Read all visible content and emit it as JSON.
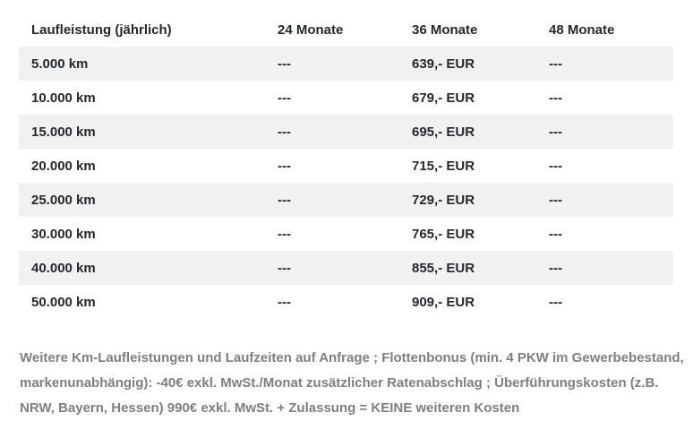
{
  "colors": {
    "stripe": "#f1f1f1",
    "table_text": "#24282c",
    "note_text": "#7f7f7f"
  },
  "table": {
    "columns": [
      "Laufleistung (jährlich)",
      "24 Monate",
      "36 Monate",
      "48 Monate"
    ],
    "rows": [
      [
        "5.000 km",
        "---",
        "639,- EUR",
        "---"
      ],
      [
        "10.000 km",
        "---",
        "679,- EUR",
        "---"
      ],
      [
        "15.000 km",
        "---",
        "695,- EUR",
        "---"
      ],
      [
        "20.000 km",
        "---",
        "715,- EUR",
        "---"
      ],
      [
        "25.000 km",
        "---",
        "729,- EUR",
        "---"
      ],
      [
        "30.000 km",
        "---",
        "765,- EUR",
        "---"
      ],
      [
        "40.000 km",
        "---",
        "855,- EUR",
        "---"
      ],
      [
        "50.000 km",
        "---",
        "909,- EUR",
        "---"
      ]
    ]
  },
  "note": {
    "text": "Weitere Km-Laufleistungen und Laufzeiten auf Anfrage ; Flottenbonus (min. 4 PKW im Gewerbebestand, markenunabhängig): -40€ exkl. MwSt./Monat zusätzlicher Ratenabschlag ; Überführungskosten (z.B. NRW, Bayern, Hessen) 990€ exkl. MwSt. + Zulassung = KEINE weiteren Kosten"
  }
}
